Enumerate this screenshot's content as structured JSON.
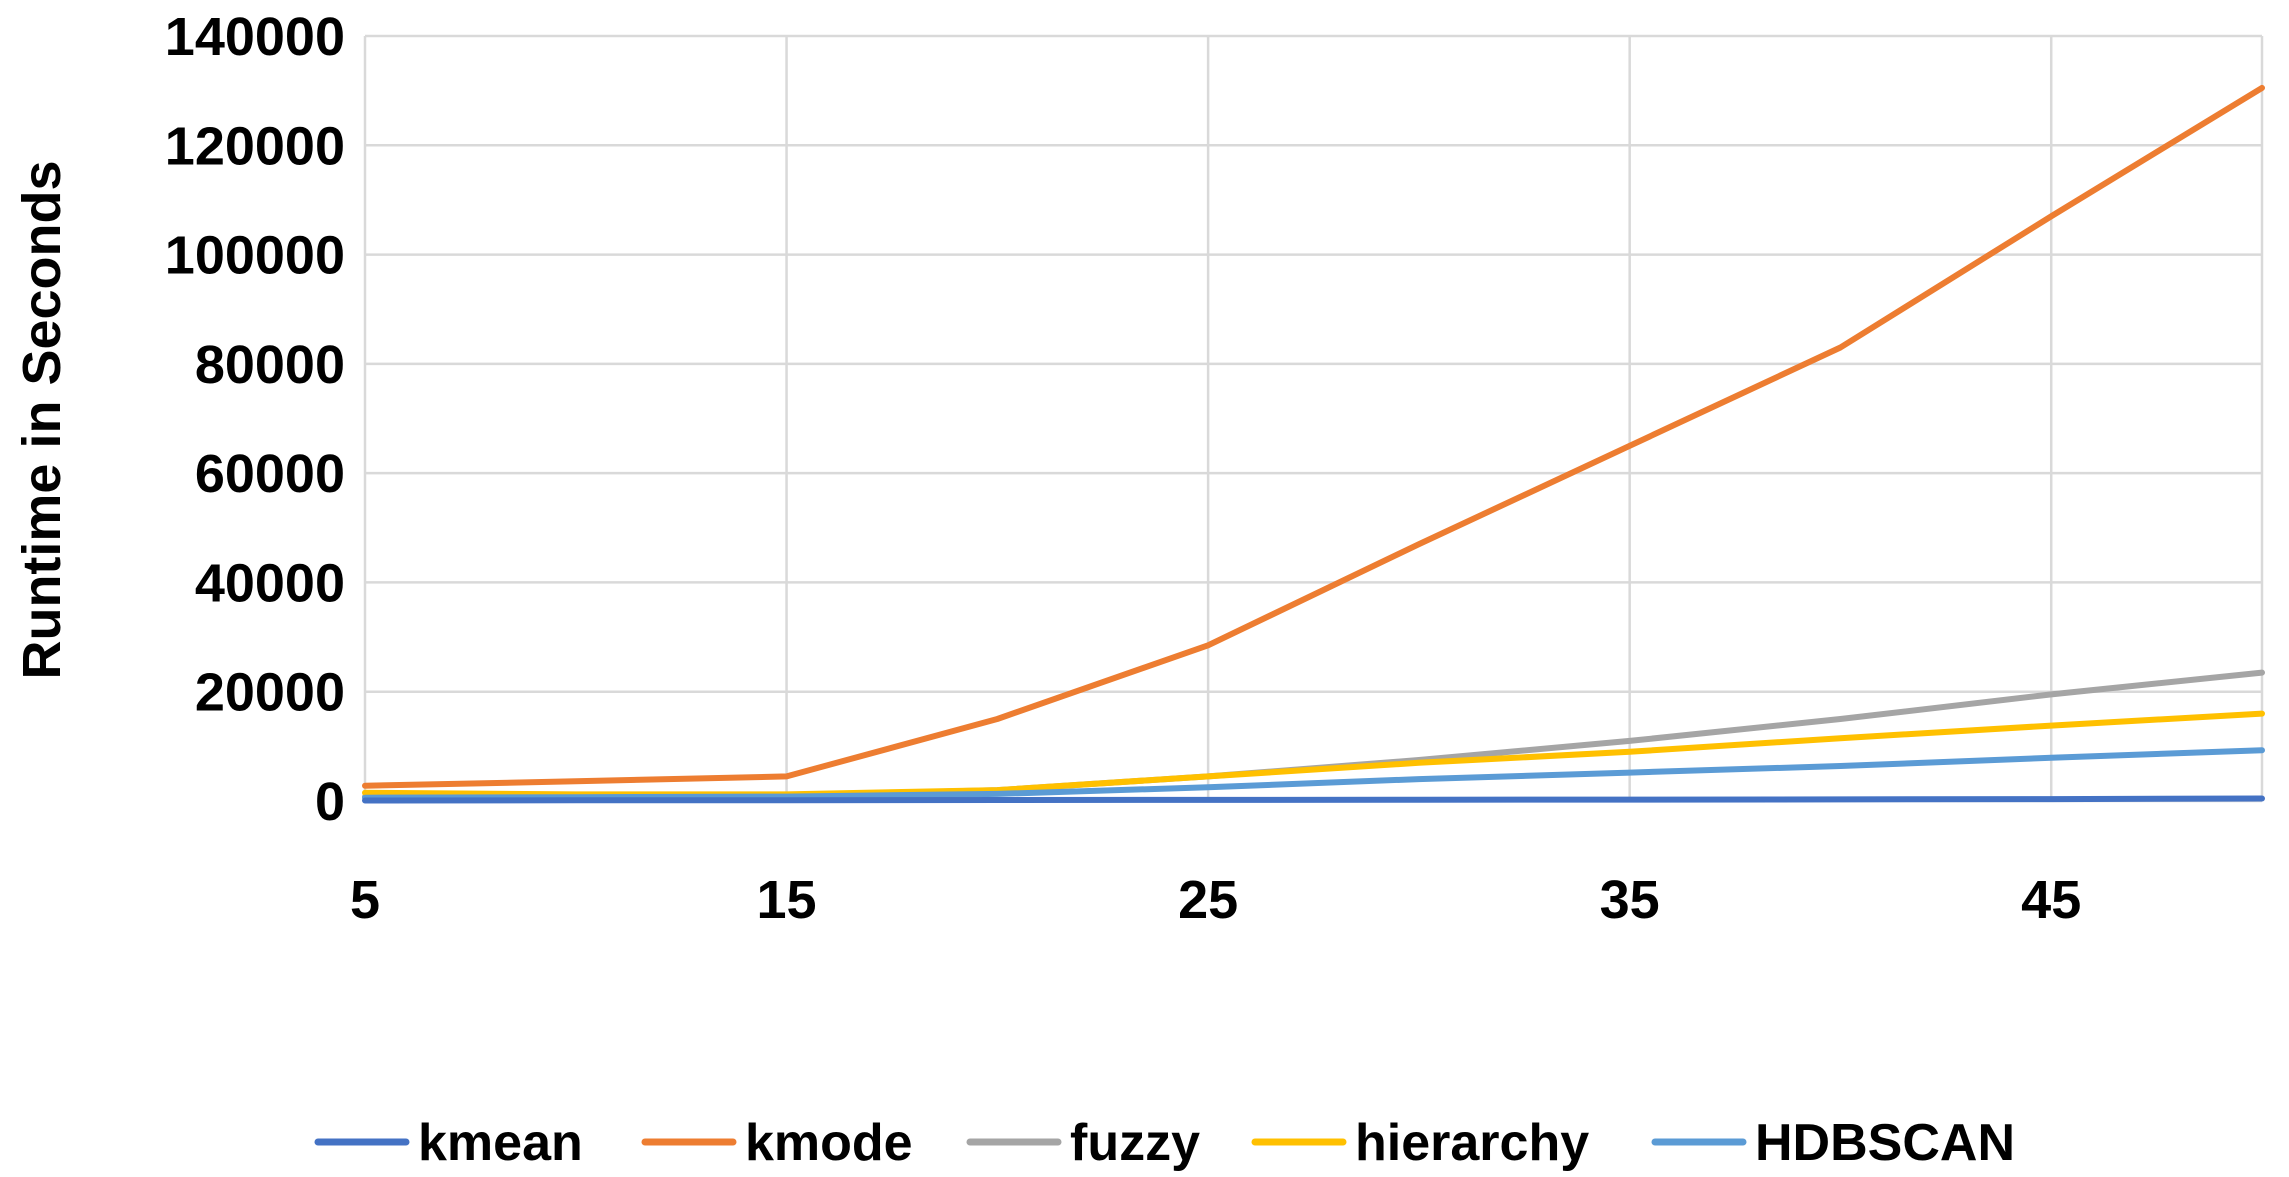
{
  "chart_data": {
    "type": "line",
    "title": "",
    "xlabel": "",
    "ylabel": "Runtime in Seconds",
    "x": [
      5,
      10,
      15,
      20,
      25,
      30,
      35,
      40,
      45,
      50
    ],
    "xlim": [
      5,
      50
    ],
    "ylim": [
      0,
      140000
    ],
    "x_ticks": [
      "5",
      "15",
      "25",
      "35",
      "45"
    ],
    "x_tick_values": [
      5,
      15,
      25,
      35,
      45
    ],
    "y_ticks": [
      "0",
      "20000",
      "40000",
      "60000",
      "80000",
      "100000",
      "120000",
      "140000"
    ],
    "y_tick_values": [
      0,
      20000,
      40000,
      60000,
      80000,
      100000,
      120000,
      140000
    ],
    "grid": true,
    "legend_position": "bottom",
    "series": [
      {
        "name": "kmean",
        "color": "#4472C4",
        "values": [
          100,
          120,
          150,
          180,
          200,
          230,
          260,
          300,
          350,
          450
        ]
      },
      {
        "name": "kmode",
        "color": "#ED7D31",
        "values": [
          2800,
          3600,
          4500,
          15000,
          28500,
          47000,
          65000,
          83000,
          107000,
          130500
        ]
      },
      {
        "name": "fuzzy",
        "color": "#A5A5A5",
        "values": [
          800,
          900,
          1000,
          2000,
          4500,
          7500,
          11000,
          15000,
          19500,
          23500
        ]
      },
      {
        "name": "hierarchy",
        "color": "#FFC000",
        "values": [
          1500,
          1200,
          1200,
          2000,
          4500,
          7000,
          9000,
          11500,
          13800,
          16000
        ]
      },
      {
        "name": "HDBSCAN",
        "color": "#5B9BD5",
        "values": [
          600,
          700,
          800,
          1300,
          2500,
          4000,
          5200,
          6400,
          7900,
          9300
        ]
      }
    ]
  }
}
